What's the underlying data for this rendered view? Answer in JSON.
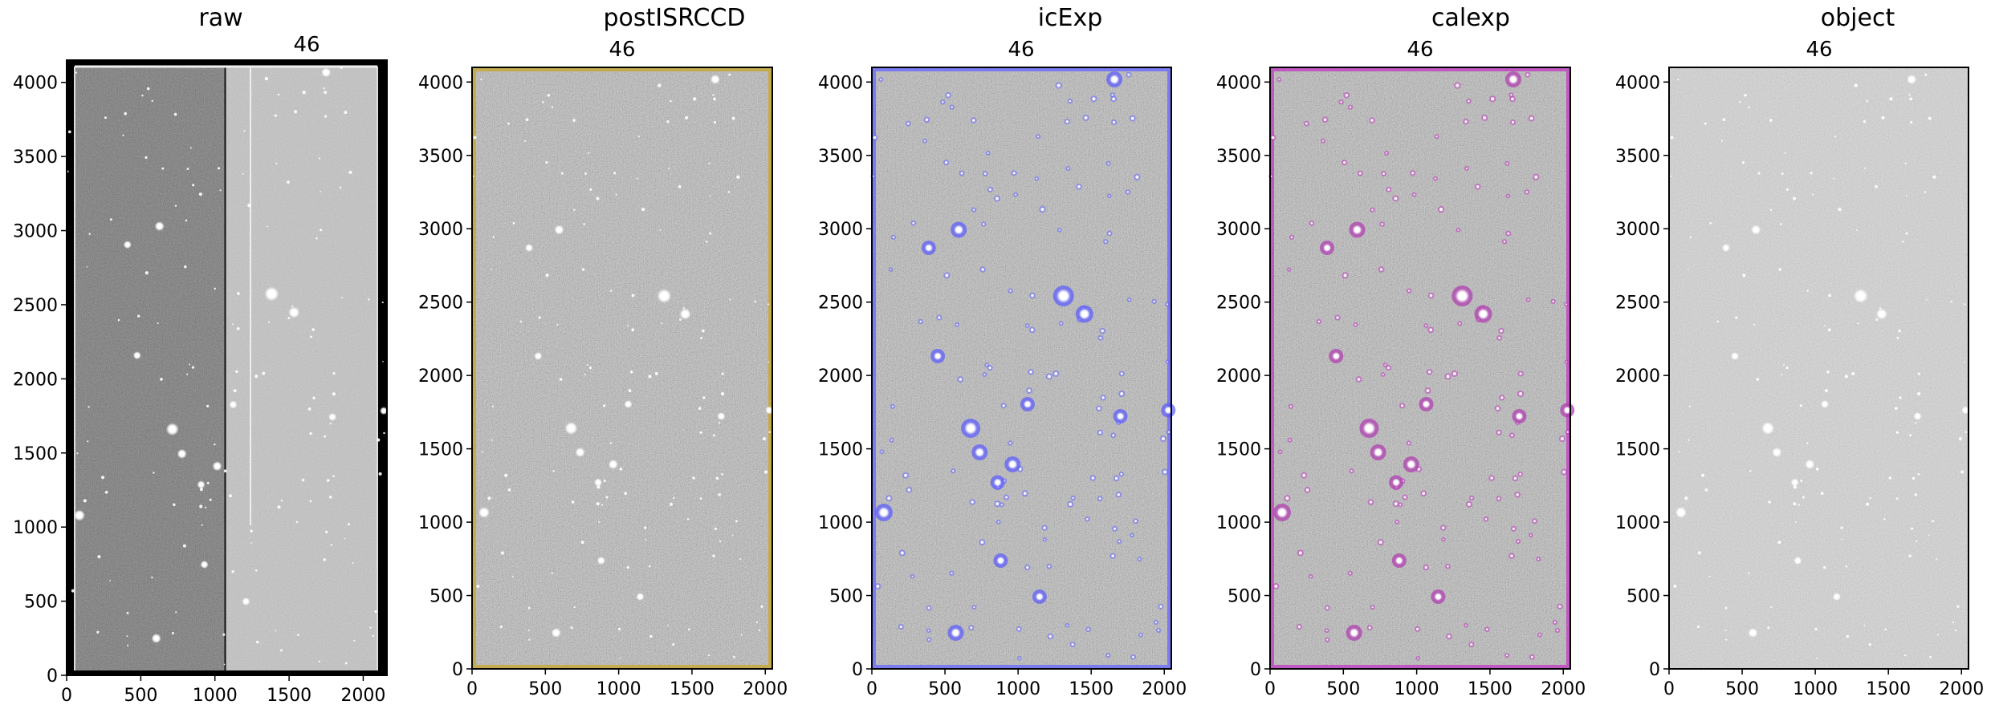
{
  "figure": {
    "panels": [
      {
        "title": "raw",
        "detector_label": "46",
        "x_ticks": [
          "0",
          "500",
          "1000",
          "1500",
          "2000"
        ],
        "y_ticks": [
          "0",
          "500",
          "1000",
          "1500",
          "2000",
          "2500",
          "3000",
          "3500",
          "4000"
        ],
        "x_range": [
          0,
          2160
        ],
        "y_range": [
          0,
          4150
        ],
        "image_style": "raw-two-amplifier",
        "overlay_color": ""
      },
      {
        "title": "postISRCCD",
        "detector_label": "46",
        "x_ticks": [
          "0",
          "500",
          "1000",
          "1500",
          "2000"
        ],
        "y_ticks": [
          "0",
          "500",
          "1000",
          "1500",
          "2000",
          "2500",
          "3000",
          "3500",
          "4000"
        ],
        "x_range": [
          0,
          2048
        ],
        "y_range": [
          0,
          4100
        ],
        "image_style": "noise-dark",
        "overlay_color": "#c8a832"
      },
      {
        "title": "icExp",
        "detector_label": "46",
        "x_ticks": [
          "0",
          "500",
          "1000",
          "1500",
          "2000"
        ],
        "y_ticks": [
          "0",
          "500",
          "1000",
          "1500",
          "2000",
          "2500",
          "3000",
          "3500",
          "4000"
        ],
        "x_range": [
          0,
          2048
        ],
        "y_range": [
          0,
          4100
        ],
        "image_style": "noise-dark",
        "overlay_color": "#6a6aff"
      },
      {
        "title": "calexp",
        "detector_label": "46",
        "x_ticks": [
          "0",
          "500",
          "1000",
          "1500",
          "2000"
        ],
        "y_ticks": [
          "0",
          "500",
          "1000",
          "1500",
          "2000",
          "2500",
          "3000",
          "3500",
          "4000"
        ],
        "x_range": [
          0,
          2048
        ],
        "y_range": [
          0,
          4100
        ],
        "image_style": "noise-dark-magenta",
        "overlay_color": "#c040c0"
      },
      {
        "title": "object",
        "detector_label": "46",
        "x_ticks": [
          "0",
          "500",
          "1000",
          "1500",
          "2000"
        ],
        "y_ticks": [
          "0",
          "500",
          "1000",
          "1500",
          "2000",
          "2500",
          "3000",
          "3500",
          "4000"
        ],
        "x_range": [
          0,
          2048
        ],
        "y_range": [
          0,
          4100
        ],
        "image_style": "noise-light",
        "overlay_color": ""
      }
    ]
  }
}
